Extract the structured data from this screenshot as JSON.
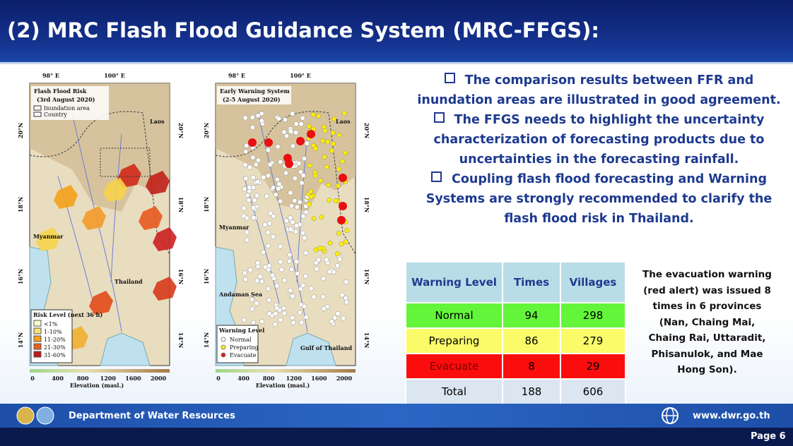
{
  "header": {
    "title": "(2) MRC Flash Flood Guidance System (MRC-FFGS):"
  },
  "maps": [
    {
      "title": "Flash Flood Risk",
      "subtitle": "(3rd August 2020)",
      "lon_labels": [
        "98° E",
        "100° E"
      ],
      "lat_labels": [
        "20°N",
        "18°N",
        "16°N",
        "14°N"
      ],
      "legend_top": [
        "Inundation area",
        "Country"
      ],
      "places": [
        "Laos",
        "Myanmar",
        "Thailand"
      ],
      "legend": {
        "title": "Risk Level (next 36 h)",
        "items": [
          "<1%",
          "1-10%",
          "11-20%",
          "21-30%",
          "31-60%"
        ]
      },
      "elevation_ticks": [
        0,
        400,
        800,
        1200,
        1600,
        2000
      ],
      "elevation_label": "Elevation (masl.)"
    },
    {
      "title": "Early Warning System",
      "subtitle": "(2-5 August 2020)",
      "lon_labels": [
        "98° E",
        "100° E"
      ],
      "lat_labels": [
        "20°N",
        "18°N",
        "16°N",
        "14°N"
      ],
      "places": [
        "Laos",
        "Myanmar",
        "Andaman Sea",
        "Gulf of Thailand"
      ],
      "legend": {
        "title": "Warning Level",
        "items": [
          "Normal",
          "Preparing",
          "Evacuate"
        ]
      },
      "elevation_ticks": [
        0,
        400,
        800,
        1200,
        1600,
        2000
      ],
      "elevation_label": "Elevation (masl.)"
    }
  ],
  "bullets": [
    [
      "The comparison results between FFR and",
      "inundation areas are illustrated in good agreement."
    ],
    [
      "The FFGS needs to highlight the uncertainty",
      "characterization of forecasting products due to",
      "uncertainties in the forecasting rainfall."
    ],
    [
      "Coupling flash flood forecasting and Warning",
      "Systems are strongly recommended  to clarify the",
      "flash flood risk in Thailand."
    ]
  ],
  "table": {
    "columns": [
      "Warning Level",
      "Times",
      "Villages"
    ],
    "rows": [
      [
        "Normal",
        94,
        298
      ],
      [
        "Preparing",
        86,
        279
      ],
      [
        "Evacuate",
        8,
        29
      ],
      [
        "Total",
        188,
        606
      ]
    ]
  },
  "note": [
    "The evacuation warning",
    "(red alert) was issued 8",
    "times in 6 provinces",
    "(Nan, Chaing Mai,",
    "Chaing Rai, Uttaradit,",
    "Phisanulok, and Mae",
    "Hong Son)."
  ],
  "footer": {
    "org": "Department of Water Resources",
    "website": "www.dwr.go.th",
    "page": "Page 6"
  }
}
